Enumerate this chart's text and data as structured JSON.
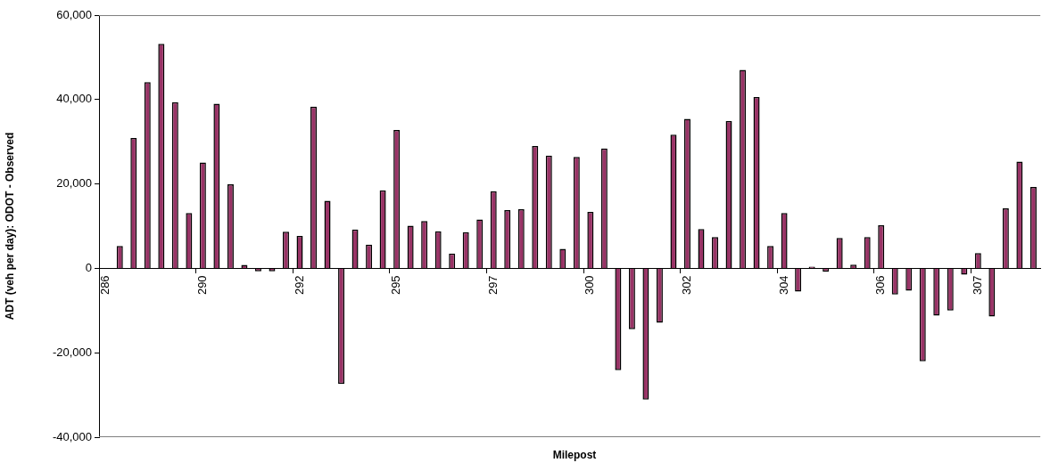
{
  "chart_data": {
    "type": "bar",
    "xlabel": "Milepost",
    "ylabel": "ADT (veh per day): ODOT - Observed",
    "categories": [
      "286",
      null,
      null,
      null,
      null,
      null,
      null,
      "290",
      null,
      null,
      null,
      null,
      null,
      null,
      "292",
      null,
      null,
      null,
      null,
      null,
      null,
      "295",
      null,
      null,
      null,
      null,
      null,
      null,
      "297",
      null,
      null,
      null,
      null,
      null,
      null,
      "300",
      null,
      null,
      null,
      null,
      null,
      null,
      "302",
      null,
      null,
      null,
      null,
      null,
      null,
      "304",
      null,
      null,
      null,
      null,
      null,
      null,
      "306",
      null,
      null,
      null,
      null,
      null,
      null,
      "307",
      null,
      null,
      null,
      null
    ],
    "values": [
      null,
      5300,
      30900,
      44100,
      53200,
      39400,
      13100,
      25100,
      39000,
      19900,
      800,
      -700,
      -700,
      8700,
      7700,
      38300,
      16000,
      -27400,
      9200,
      5600,
      18500,
      32800,
      10100,
      11200,
      8800,
      3500,
      8600,
      11600,
      18300,
      13800,
      14000,
      29000,
      26700,
      4600,
      26400,
      13400,
      28400,
      -24100,
      -14400,
      -31100,
      -12900,
      31700,
      35400,
      9300,
      7400,
      34900,
      47000,
      40600,
      5300,
      13100,
      -5500,
      400,
      -800,
      7200,
      900,
      7400,
      10200,
      -6200,
      -5300,
      -22000,
      -11200,
      -10000,
      -1500,
      3600,
      -11400,
      14200,
      25300,
      19300
    ],
    "color": "#993366",
    "ylim": [
      -40000,
      60000
    ],
    "yticks": [
      {
        "value": -40000,
        "label": "-40,000"
      },
      {
        "value": -20000,
        "label": "-20,000"
      },
      {
        "value": 0,
        "label": "0"
      },
      {
        "value": 20000,
        "label": "20,000"
      },
      {
        "value": 40000,
        "label": "40,000"
      },
      {
        "value": 60000,
        "label": "60,000"
      }
    ],
    "grid": false,
    "legend": false
  }
}
